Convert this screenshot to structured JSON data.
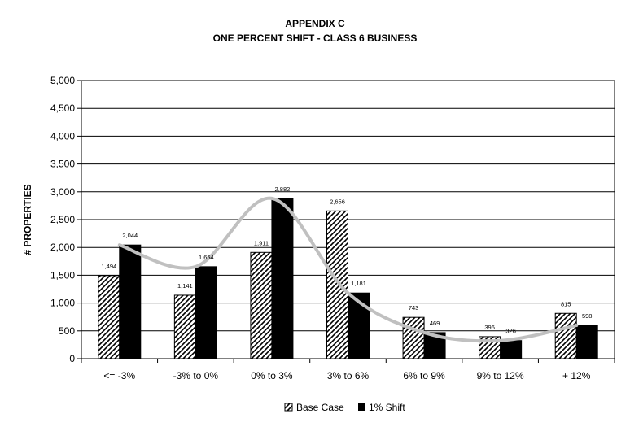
{
  "chart_data": {
    "type": "bar",
    "title": "APPENDIX C",
    "subtitle": "ONE PERCENT SHIFT - CLASS 6 BUSINESS",
    "xlabel": "",
    "ylabel": "# PROPERTIES",
    "ylim": [
      0,
      5000
    ],
    "yticks": [
      "0",
      "500",
      "1,000",
      "1,500",
      "2,000",
      "2,500",
      "3,000",
      "3,500",
      "4,000",
      "4,500",
      "5,000"
    ],
    "categories": [
      "<= -3%",
      "-3% to 0%",
      "0% to 3%",
      "3% to 6%",
      "6% to 9%",
      "9% to 12%",
      "+ 12%"
    ],
    "series": [
      {
        "name": "Base Case",
        "values": [
          1494,
          1141,
          1911,
          2656,
          743,
          396,
          815
        ],
        "labels": [
          "1,494",
          "1,141",
          "1,911",
          "2,656",
          "743",
          "396",
          "815"
        ],
        "fill": "diagonal-hatch"
      },
      {
        "name": "1% Shift",
        "values": [
          2044,
          1654,
          2882,
          1181,
          469,
          326,
          598
        ],
        "labels": [
          "2,044",
          "1,654",
          "2,882",
          "1,181",
          "469",
          "326",
          "598"
        ],
        "fill": "#000000"
      }
    ],
    "trend_line": {
      "series": "1% Shift",
      "color": "#c0c0c0",
      "smooth": true
    },
    "grid": true,
    "legend": "bottom",
    "colors": {
      "axis": "#000000",
      "gridline": "#000000",
      "trend": "#c0c0c0",
      "bar_solid": "#000000"
    }
  }
}
